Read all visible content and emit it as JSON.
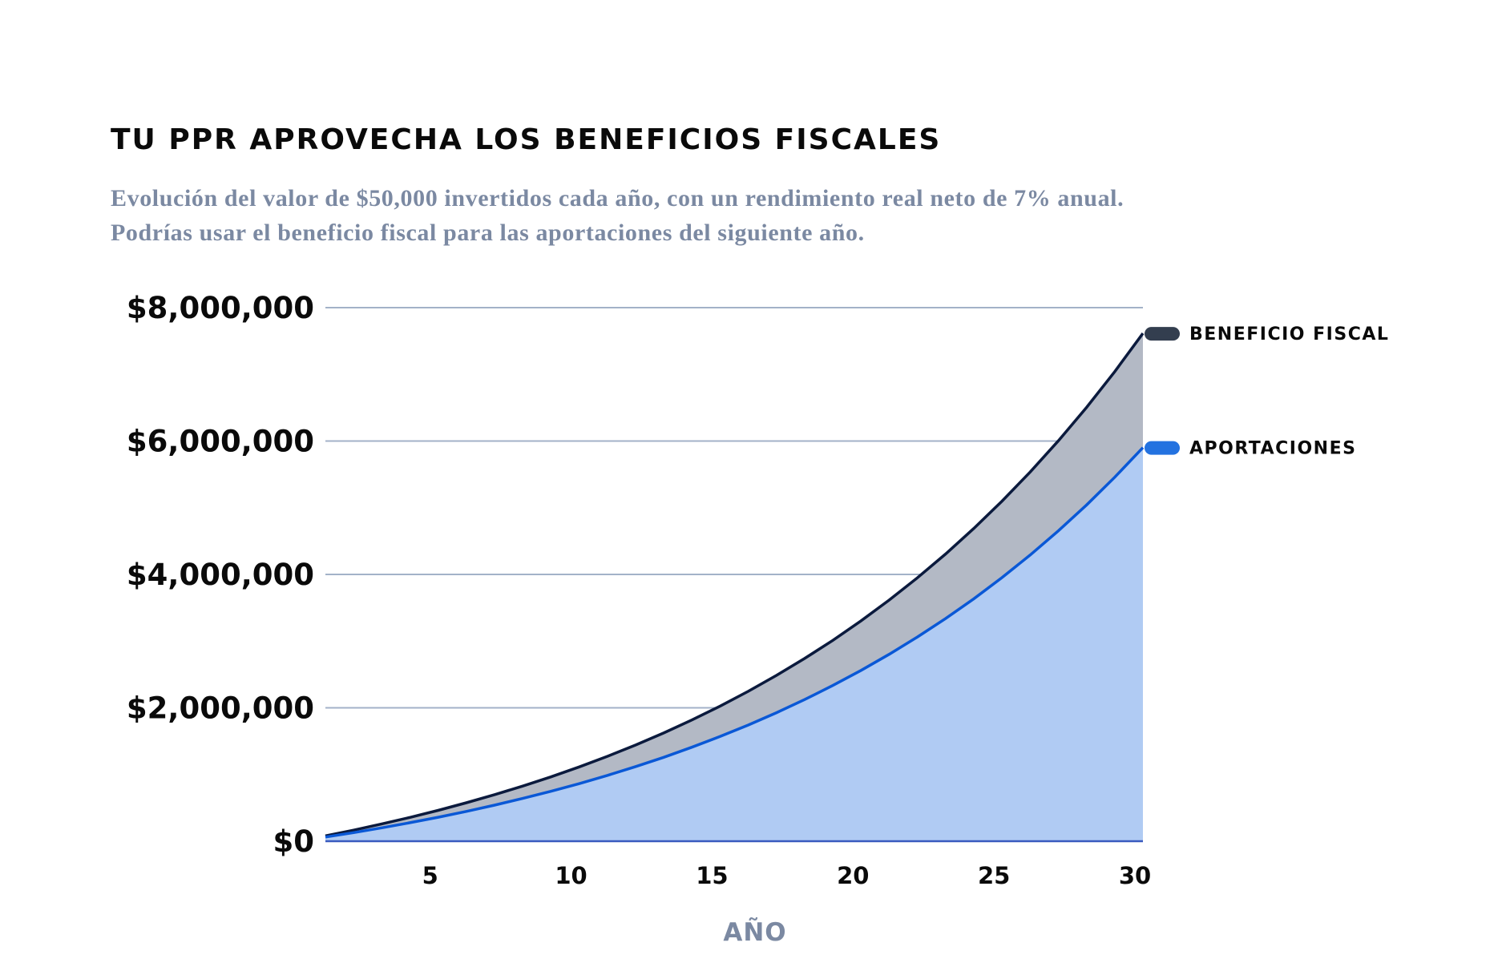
{
  "title": "TU PPR APROVECHA LOS BENEFICIOS FISCALES",
  "subtitle": "Evolución del valor de $50,000 invertidos cada año, con un rendimiento real neto de 7% anual. Podrías usar el beneficio fiscal para las aportaciones del siguiente año.",
  "chart_data": {
    "type": "area",
    "title": "TU PPR APROVECHA LOS BENEFICIOS FISCALES",
    "xlabel": "AÑO",
    "ylabel": "",
    "x": [
      1,
      2,
      3,
      4,
      5,
      6,
      7,
      8,
      9,
      10,
      11,
      12,
      13,
      14,
      15,
      16,
      17,
      18,
      19,
      20,
      21,
      22,
      23,
      24,
      25,
      26,
      27,
      28,
      29,
      30
    ],
    "xlim": [
      1,
      30
    ],
    "ylim": [
      0,
      8000000
    ],
    "x_ticks": [
      "5",
      "10",
      "15",
      "20",
      "25",
      "30"
    ],
    "x_tick_values": [
      5,
      10,
      15,
      20,
      25,
      30
    ],
    "y_ticks": [
      "$0",
      "$2,000,000",
      "$4,000,000",
      "$6,000,000",
      "$8,000,000"
    ],
    "y_tick_values": [
      0,
      2000000,
      4000000,
      6000000,
      8000000
    ],
    "grid": true,
    "legend_placement": "right",
    "series": [
      {
        "name": "BENEFICIO FISCAL",
        "line_color": "#0b1a3d",
        "fill_color": "#b3b9c5",
        "legend_color": "#333e4f",
        "values": [
          80000,
          166000,
          259000,
          357000,
          463000,
          577000,
          698000,
          827000,
          965000,
          1113000,
          1272000,
          1442000,
          1623000,
          1818000,
          2025000,
          2247000,
          2486000,
          2740000,
          3012000,
          3304000,
          3616000,
          3950000,
          4306000,
          4689000,
          5098000,
          5535000,
          6004000,
          6504000,
          7040000,
          7614000
        ]
      },
      {
        "name": "APORTACIONES",
        "line_color": "#0a58d6",
        "fill_color": "#b0cbf3",
        "legend_color": "#2372e0",
        "values": [
          62000,
          129000,
          201000,
          277000,
          359000,
          447000,
          541000,
          641000,
          748000,
          863000,
          986000,
          1118000,
          1258000,
          1409000,
          1570000,
          1742000,
          1927000,
          2124000,
          2335000,
          2561000,
          2803000,
          3062000,
          3338000,
          3635000,
          3952000,
          4291000,
          4654000,
          5042000,
          5457000,
          5902000
        ]
      }
    ]
  }
}
